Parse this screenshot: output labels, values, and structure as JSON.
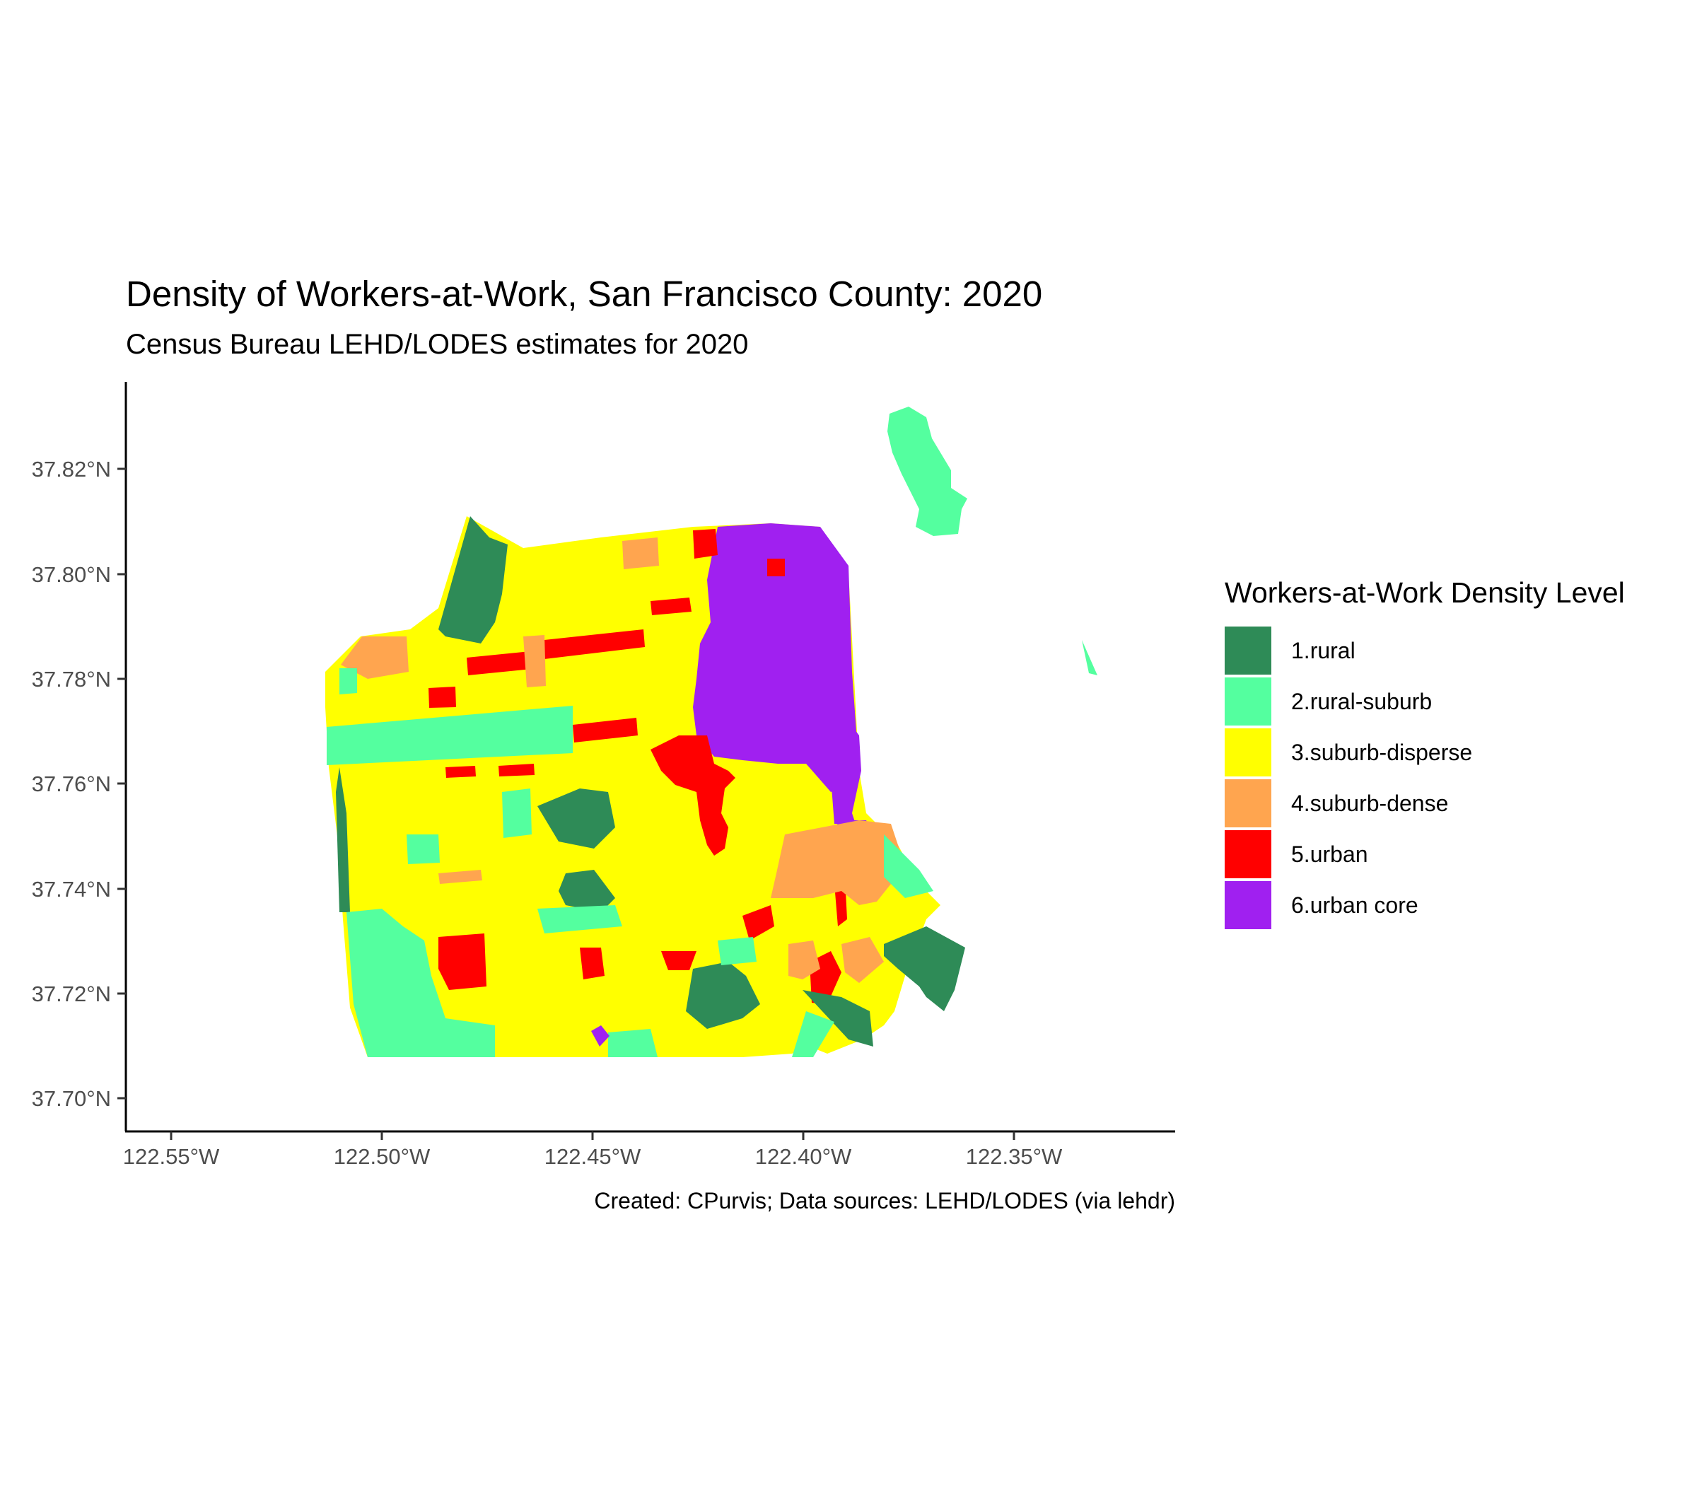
{
  "title": "Density of Workers-at-Work, San Francisco County: 2020",
  "subtitle": "Census Bureau LEHD/LODES estimates for 2020",
  "caption": "Created: CPurvis; Data sources: LEHD/LODES (via lehdr)",
  "legend": {
    "title": "Workers-at-Work Density Level",
    "items": [
      {
        "label": "1.rural",
        "color": "#2e8b57"
      },
      {
        "label": "2.rural-suburb",
        "color": "#54ff9f"
      },
      {
        "label": "3.suburb-disperse",
        "color": "#ffff00"
      },
      {
        "label": "4.suburb-dense",
        "color": "#ffa54f"
      },
      {
        "label": "5.urban",
        "color": "#ff0000"
      },
      {
        "label": "6.urban core",
        "color": "#a020f0"
      }
    ]
  },
  "axes": {
    "x_ticks": [
      "122.55°W",
      "122.50°W",
      "122.45°W",
      "122.40°W",
      "122.35°W"
    ],
    "y_ticks": [
      "37.82°N",
      "37.80°N",
      "37.78°N",
      "37.76°N",
      "37.74°N",
      "37.72°N",
      "37.70°N"
    ]
  }
}
